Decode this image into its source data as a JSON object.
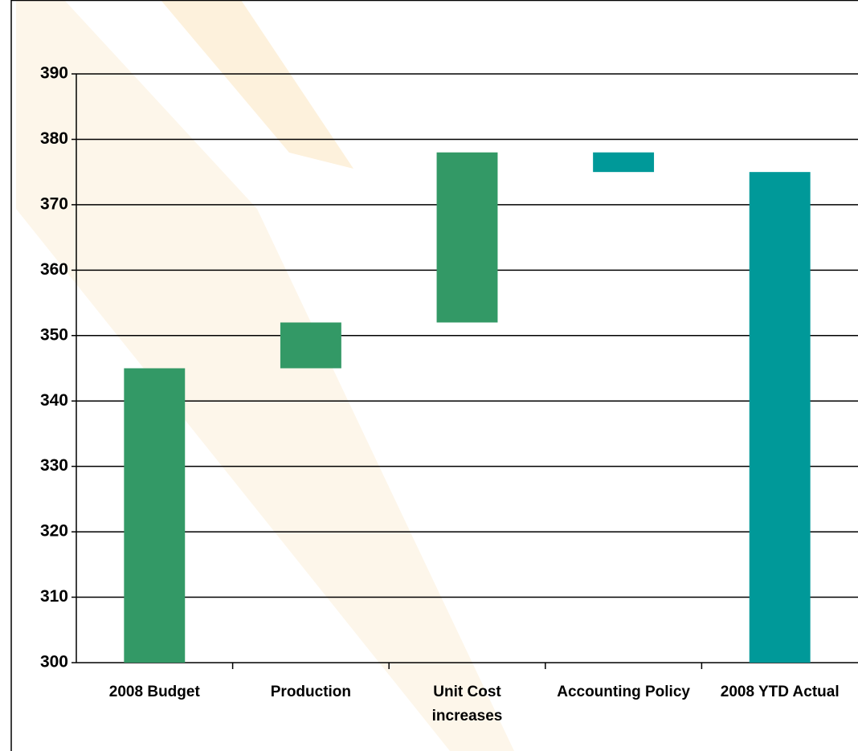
{
  "chart_data": {
    "type": "waterfall",
    "categories": [
      "2008 Budget",
      "Production",
      "Unit Cost increases",
      "Accounting Policy",
      "2008 YTD Actual"
    ],
    "values": [
      345,
      7,
      26,
      -3,
      375
    ],
    "colors": [
      "#339966",
      "#339966",
      "#339966",
      "#009999",
      "#009999"
    ],
    "ylim": [
      300,
      390
    ],
    "yticks": [
      300,
      310,
      320,
      330,
      340,
      350,
      360,
      370,
      380,
      390
    ],
    "grid": true
  }
}
